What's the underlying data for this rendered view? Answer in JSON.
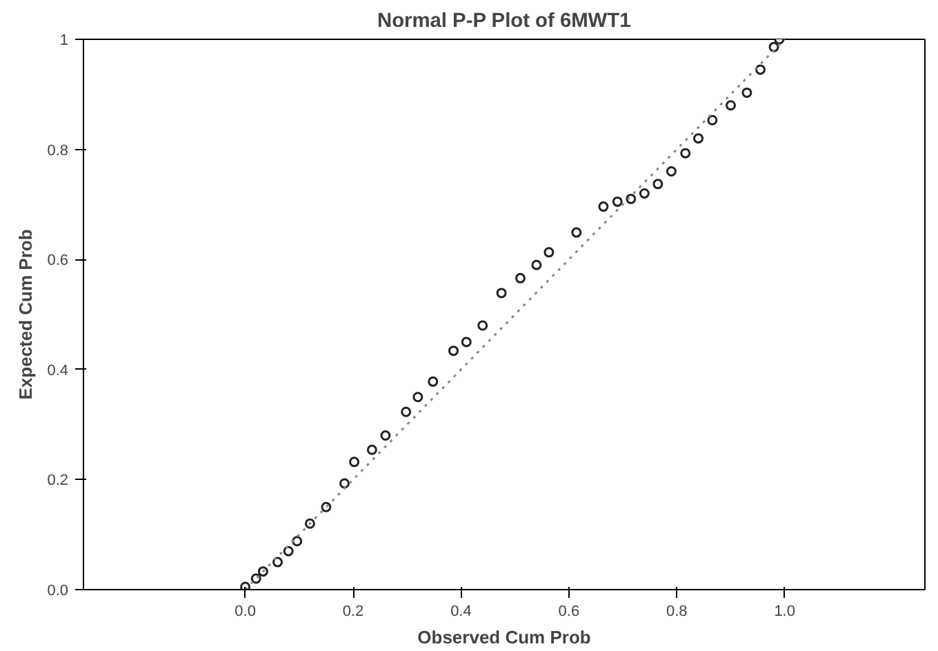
{
  "chart_data": {
    "type": "scatter",
    "title": "Normal P-P Plot of 6MWT1",
    "xlabel": "Observed Cum Prob",
    "ylabel": "Expected Cum Prob",
    "xlim": [
      -0.3,
      1.26
    ],
    "ylim": [
      0,
      1
    ],
    "xticks": [
      {
        "value": 0,
        "label": "0.0"
      },
      {
        "value": 0.2,
        "label": "0.2"
      },
      {
        "value": 0.4,
        "label": "0.4"
      },
      {
        "value": 0.6,
        "label": "0.6"
      },
      {
        "value": 0.8,
        "label": "0.8"
      },
      {
        "value": 1,
        "label": "1.0"
      }
    ],
    "yticks": [
      {
        "value": 0,
        "label": "0.0"
      },
      {
        "value": 0.2,
        "label": "0.2"
      },
      {
        "value": 0.4,
        "label": "0.4"
      },
      {
        "value": 0.6,
        "label": "0.6"
      },
      {
        "value": 0.8,
        "label": "0.8"
      },
      1
    ],
    "grid": false,
    "marker": "circle",
    "series": [
      {
        "color": "#222222",
        "x": [
          0.0,
          0.02,
          0.033,
          0.06,
          0.08,
          0.096,
          0.12,
          0.15,
          0.184,
          0.202,
          0.235,
          0.26,
          0.298,
          0.32,
          0.348,
          0.386,
          0.41,
          0.44,
          0.475,
          0.51,
          0.54,
          0.563,
          0.614,
          0.664,
          0.69,
          0.715,
          0.74,
          0.765,
          0.79,
          0.816,
          0.84,
          0.866,
          0.9,
          0.93,
          0.955,
          0.98,
          0.99
        ],
        "values": [
          0.005,
          0.02,
          0.033,
          0.05,
          0.07,
          0.088,
          0.12,
          0.15,
          0.193,
          0.232,
          0.254,
          0.28,
          0.323,
          0.35,
          0.378,
          0.434,
          0.45,
          0.48,
          0.539,
          0.566,
          0.59,
          0.613,
          0.649,
          0.696,
          0.705,
          0.71,
          0.72,
          0.737,
          0.76,
          0.793,
          0.82,
          0.853,
          0.88,
          0.903,
          0.945,
          0.986,
          1.0
        ]
      },
      {
        "type": "line",
        "color": "#888888",
        "line_style": "dotted",
        "marker": "none",
        "x": [
          0,
          1
        ],
        "values": [
          0,
          1
        ]
      }
    ]
  }
}
